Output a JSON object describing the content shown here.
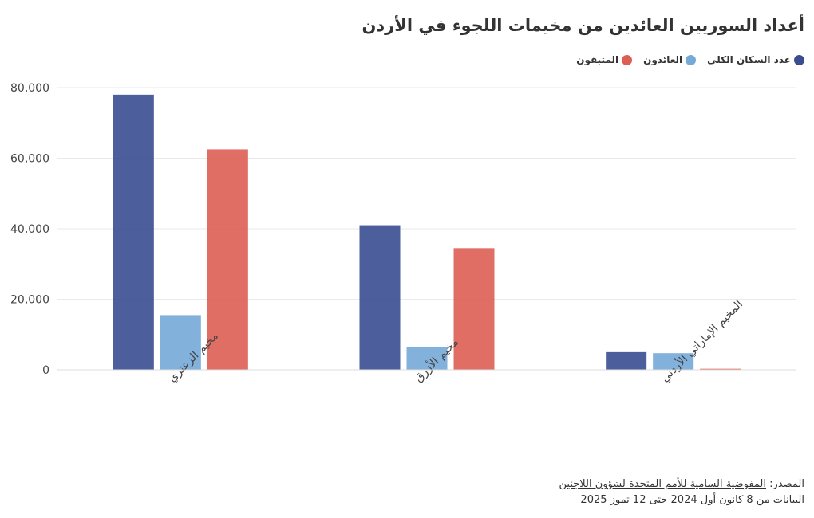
{
  "title": "أعداد السوريين العائدين من مخيمات اللجوء في الأردن",
  "footer": {
    "source_prefix": "المصدر:",
    "source_name": "المفوضية السامية للأمم المتحدة لشؤون اللاجئين",
    "date_range": "البيانات من 8 كانون أول 2024 حتى 12 تموز 2025"
  },
  "colors": {
    "total": "#3a4d91",
    "returned": "#74a9d8",
    "remaining": "#dd5e53",
    "grid": "#eaeaea",
    "axis_text": "#444444"
  },
  "chart_data": {
    "type": "bar",
    "title": "أعداد السوريين العائدين من مخيمات اللجوء في الأردن",
    "xlabel": "",
    "ylabel": "",
    "categories": [
      "مخيم الزعتري",
      "مخيم الأزرق",
      "المخيم الإماراتي الأردني"
    ],
    "series": [
      {
        "name": "عدد السكان الكلي",
        "key": "total",
        "values": [
          78000,
          41000,
          5000
        ]
      },
      {
        "name": "العائدون",
        "key": "returned",
        "values": [
          15500,
          6500,
          4700
        ]
      },
      {
        "name": "المتبقون",
        "key": "remaining",
        "values": [
          62500,
          34500,
          300
        ]
      }
    ],
    "ylim": [
      0,
      80000
    ],
    "yticks": [
      0,
      20000,
      40000,
      60000,
      80000
    ],
    "ytick_labels": [
      "0",
      "20,000",
      "40,000",
      "60,000",
      "80,000"
    ],
    "grid": true,
    "legend_position": "top-right"
  }
}
